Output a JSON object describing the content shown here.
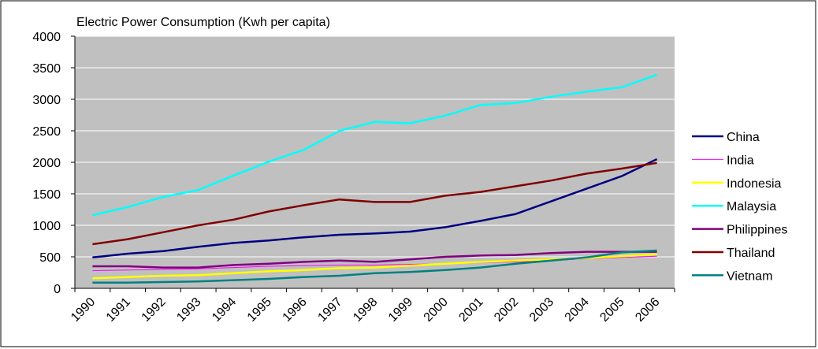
{
  "chart_data": {
    "type": "line",
    "title": "Electric Power Consumption (Kwh per capita)",
    "categories": [
      "1990",
      "1991",
      "1992",
      "1993",
      "1994",
      "1995",
      "1996",
      "1997",
      "1998",
      "1999",
      "2000",
      "2001",
      "2002",
      "2003",
      "2004",
      "2005",
      "2006"
    ],
    "series": [
      {
        "name": "China",
        "color": "#000080",
        "values": [
          490,
          550,
          590,
          660,
          720,
          760,
          810,
          850,
          870,
          900,
          970,
          1070,
          1180,
          1380,
          1580,
          1780,
          2050
        ]
      },
      {
        "name": "India",
        "color": "#ff00ff",
        "values": [
          280,
          290,
          300,
          310,
          330,
          350,
          360,
          370,
          370,
          380,
          390,
          410,
          420,
          440,
          470,
          490,
          510
        ]
      },
      {
        "name": "Indonesia",
        "color": "#ffff00",
        "values": [
          160,
          180,
          200,
          210,
          240,
          270,
          290,
          320,
          330,
          360,
          390,
          420,
          440,
          460,
          480,
          510,
          540
        ]
      },
      {
        "name": "Malaysia",
        "color": "#00ffff",
        "values": [
          1160,
          1290,
          1450,
          1560,
          1790,
          2010,
          2200,
          2500,
          2640,
          2620,
          2740,
          2910,
          2940,
          3040,
          3120,
          3190,
          3390
        ]
      },
      {
        "name": "Philippines",
        "color": "#800080",
        "values": [
          350,
          350,
          330,
          330,
          370,
          390,
          420,
          440,
          420,
          460,
          500,
          520,
          530,
          560,
          580,
          580,
          580
        ]
      },
      {
        "name": "Thailand",
        "color": "#800000",
        "values": [
          700,
          780,
          890,
          1000,
          1090,
          1220,
          1320,
          1410,
          1370,
          1370,
          1470,
          1530,
          1620,
          1710,
          1820,
          1900,
          1990
        ]
      },
      {
        "name": "Vietnam",
        "color": "#008080",
        "values": [
          90,
          90,
          100,
          110,
          130,
          150,
          180,
          200,
          240,
          260,
          290,
          330,
          390,
          440,
          490,
          570,
          600
        ]
      }
    ],
    "ylim": [
      0,
      4000
    ],
    "yticks": [
      0,
      500,
      1000,
      1500,
      2000,
      2500,
      3000,
      3500,
      4000
    ],
    "grid": true,
    "legend": "right"
  }
}
